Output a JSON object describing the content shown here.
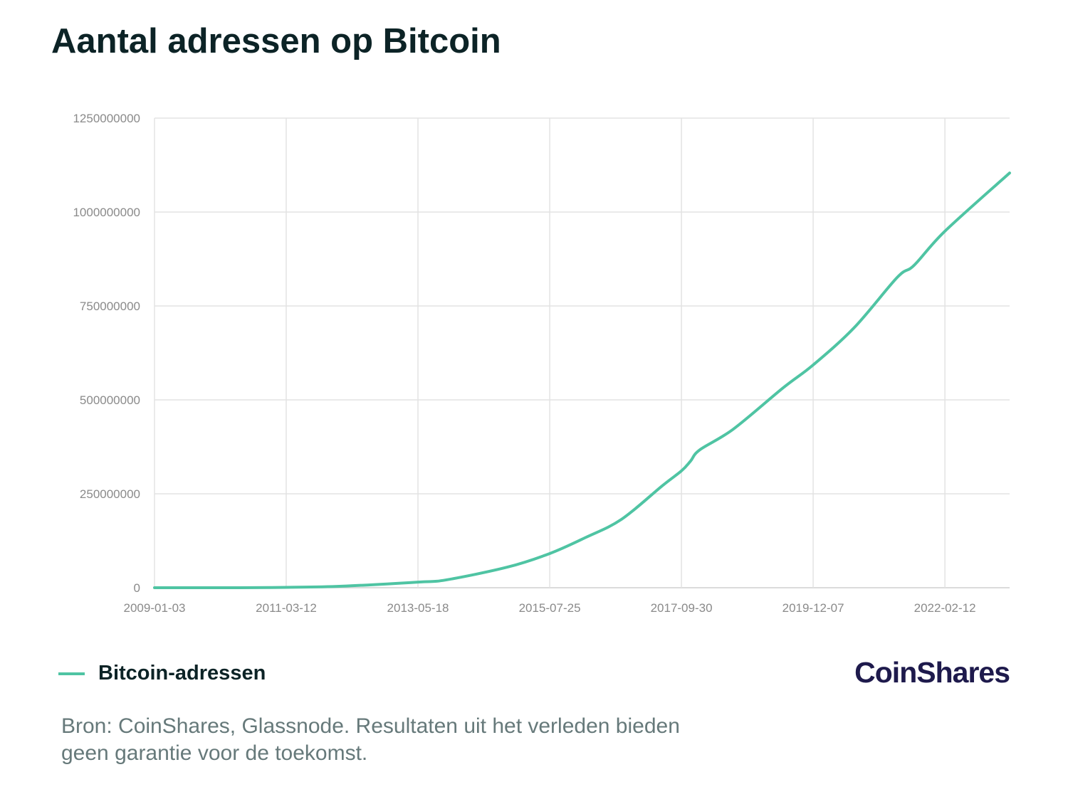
{
  "chart_data": {
    "type": "line",
    "title": "Aantal adressen op Bitcoin",
    "xlabel": "",
    "ylabel": "",
    "ylim": [
      0,
      1250000000
    ],
    "y_ticks": [
      "0",
      "250000000",
      "500000000",
      "750000000",
      "1000000000",
      "1250000000"
    ],
    "x_ticks": [
      "2009-01-03",
      "2011-03-12",
      "2013-05-18",
      "2015-07-25",
      "2017-09-30",
      "2019-12-07",
      "2022-02-12"
    ],
    "xlim": [
      "2009-01-03",
      "2023-03-11"
    ],
    "grid": true,
    "legend_position": "bottom-left",
    "series": [
      {
        "name": "Bitcoin-adressen",
        "color": "#4fc4a3",
        "points": [
          [
            "2009-01-03",
            0
          ],
          [
            "2010-06-01",
            0
          ],
          [
            "2011-03-12",
            1000000
          ],
          [
            "2012-02-10",
            4000000
          ],
          [
            "2013-05-18",
            15000000
          ],
          [
            "2013-11-07",
            21000000
          ],
          [
            "2014-11-12",
            55000000
          ],
          [
            "2015-07-25",
            91000000
          ],
          [
            "2016-02-29",
            134000000
          ],
          [
            "2016-10-02",
            182000000
          ],
          [
            "2017-06-05",
            271000000
          ],
          [
            "2017-09-30",
            311000000
          ],
          [
            "2017-11-24",
            337000000
          ],
          [
            "2018-01-19",
            367000000
          ],
          [
            "2018-08-10",
            422000000
          ],
          [
            "2019-06-08",
            532000000
          ],
          [
            "2019-12-07",
            593000000
          ],
          [
            "2020-08-13",
            693000000
          ],
          [
            "2021-04-29",
            826000000
          ],
          [
            "2021-08-09",
            858000000
          ],
          [
            "2022-02-12",
            949000000
          ],
          [
            "2023-03-11",
            1104000000
          ]
        ]
      }
    ]
  },
  "legend_label": "Bitcoin-adressen",
  "logo_text": "CoinShares",
  "source_text": "Bron: CoinShares, Glassnode. Resultaten uit het verleden bieden geen garantie voor de toekomst."
}
